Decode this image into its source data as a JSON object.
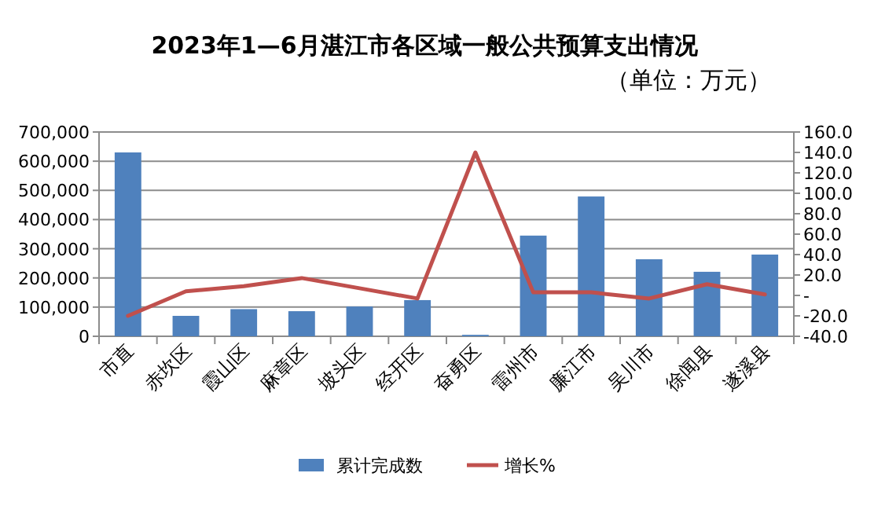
{
  "chart_data": {
    "type": "bar",
    "title": "2023年1—6月湛江市各区域一般公共预算支出情况",
    "subtitle": "（单位：万元）",
    "categories": [
      "市直",
      "赤坎区",
      "霞山区",
      "麻章区",
      "坡头区",
      "经开区",
      "奋勇区",
      "雷州市",
      "廉江市",
      "吴川市",
      "徐闻县",
      "遂溪县"
    ],
    "series": [
      {
        "name": "累计完成数",
        "color": "#4f81bd",
        "values": [
          630000,
          70000,
          93000,
          86000,
          102000,
          124000,
          5000,
          345000,
          479000,
          264000,
          221000,
          280000
        ]
      },
      {
        "name": "增长%",
        "type": "line",
        "axis": "y2",
        "color": "#c0504d",
        "values": [
          -20,
          4,
          9,
          17,
          7,
          -3,
          140,
          3,
          3,
          -3,
          11,
          1
        ]
      }
    ],
    "ylim": [
      0,
      700000
    ],
    "yticks": [
      {
        "value": 0,
        "label": "0"
      },
      {
        "value": 100000,
        "label": "100,000"
      },
      {
        "value": 200000,
        "label": "200,000"
      },
      {
        "value": 300000,
        "label": "300,000"
      },
      {
        "value": 400000,
        "label": "400,000"
      },
      {
        "value": 500000,
        "label": "500,000"
      },
      {
        "value": 600000,
        "label": "600,000"
      },
      {
        "value": 700000,
        "label": "700,000"
      }
    ],
    "y2lim": [
      -40,
      160
    ],
    "y2ticks": [
      {
        "value": -40,
        "label": "-40.0"
      },
      {
        "value": -20,
        "label": "-20.0"
      },
      {
        "value": 0,
        "label": "-"
      },
      {
        "value": 20,
        "label": "20.0"
      },
      {
        "value": 40,
        "label": "40.0"
      },
      {
        "value": 60,
        "label": "60.0"
      },
      {
        "value": 80,
        "label": "80.0"
      },
      {
        "value": 100,
        "label": "100.0"
      },
      {
        "value": 120,
        "label": "120.0"
      },
      {
        "value": 140,
        "label": "140.0"
      },
      {
        "value": 160,
        "label": "160.0"
      }
    ],
    "grid": "y",
    "legend": "bottom"
  }
}
